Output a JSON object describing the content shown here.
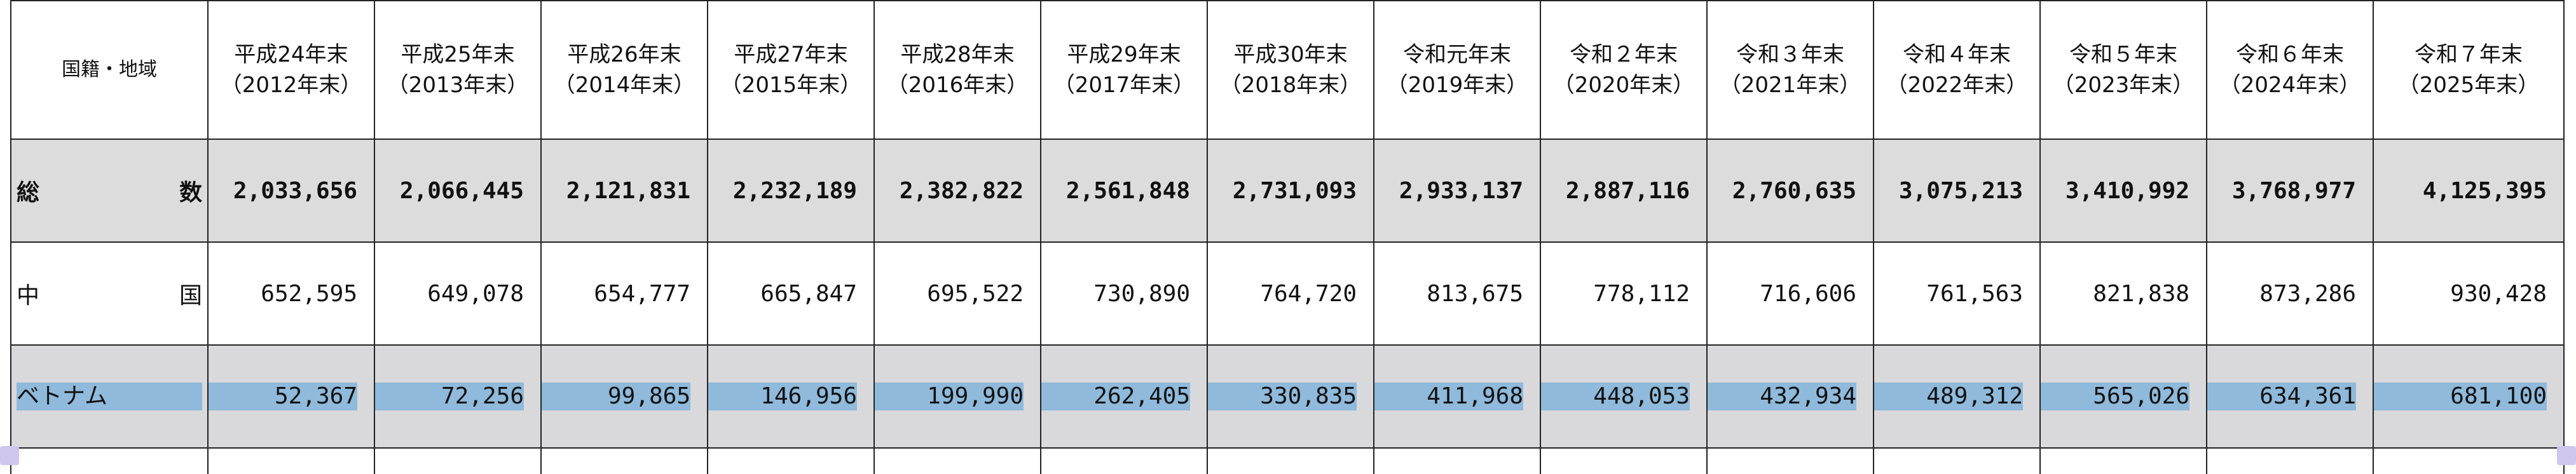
{
  "table": {
    "corner": "国籍・地域",
    "columns": [
      {
        "era": "平成24年末",
        "year": "（2012年末）"
      },
      {
        "era": "平成25年末",
        "year": "（2013年末）"
      },
      {
        "era": "平成26年末",
        "year": "（2014年末）"
      },
      {
        "era": "平成27年末",
        "year": "（2015年末）"
      },
      {
        "era": "平成28年末",
        "year": "（2016年末）"
      },
      {
        "era": "平成29年末",
        "year": "（2017年末）"
      },
      {
        "era": "平成30年末",
        "year": "（2018年末）"
      },
      {
        "era": "令和元年末",
        "year": "（2019年末）"
      },
      {
        "era": "令和２年末",
        "year": "（2020年末）"
      },
      {
        "era": "令和３年末",
        "year": "（2021年末）"
      },
      {
        "era": "令和４年末",
        "year": "（2022年末）"
      },
      {
        "era": "令和５年末",
        "year": "（2023年末）"
      },
      {
        "era": "令和６年末",
        "year": "（2024年末）"
      },
      {
        "era": "令和７年末",
        "year": "（2025年末）"
      }
    ],
    "rows": [
      {
        "label_left": "総",
        "label_right": "数",
        "values": [
          "2,033,656",
          "2,066,445",
          "2,121,831",
          "2,232,189",
          "2,382,822",
          "2,561,848",
          "2,731,093",
          "2,933,137",
          "2,887,116",
          "2,760,635",
          "3,075,213",
          "3,410,992",
          "3,768,977",
          "4,125,395"
        ]
      },
      {
        "label_left": "中",
        "label_right": "国",
        "values": [
          "652,595",
          "649,078",
          "654,777",
          "665,847",
          "695,522",
          "730,890",
          "764,720",
          "813,675",
          "778,112",
          "716,606",
          "761,563",
          "821,838",
          "873,286",
          "930,428"
        ]
      },
      {
        "label_parts": [
          "ベ",
          "ト",
          "ナ",
          "ム"
        ],
        "values": [
          "52,367",
          "72,256",
          "99,865",
          "146,956",
          "199,990",
          "262,405",
          "330,835",
          "411,968",
          "448,053",
          "432,934",
          "489,312",
          "565,026",
          "634,361",
          "681,100"
        ]
      }
    ]
  },
  "colors": {
    "header_bg": "#ffffff",
    "total_row_bg": "#dcdcdc",
    "vietnam_row_bg": "#d9d9db",
    "highlight_band": "#8fbadb",
    "grid_line": "#222222"
  }
}
